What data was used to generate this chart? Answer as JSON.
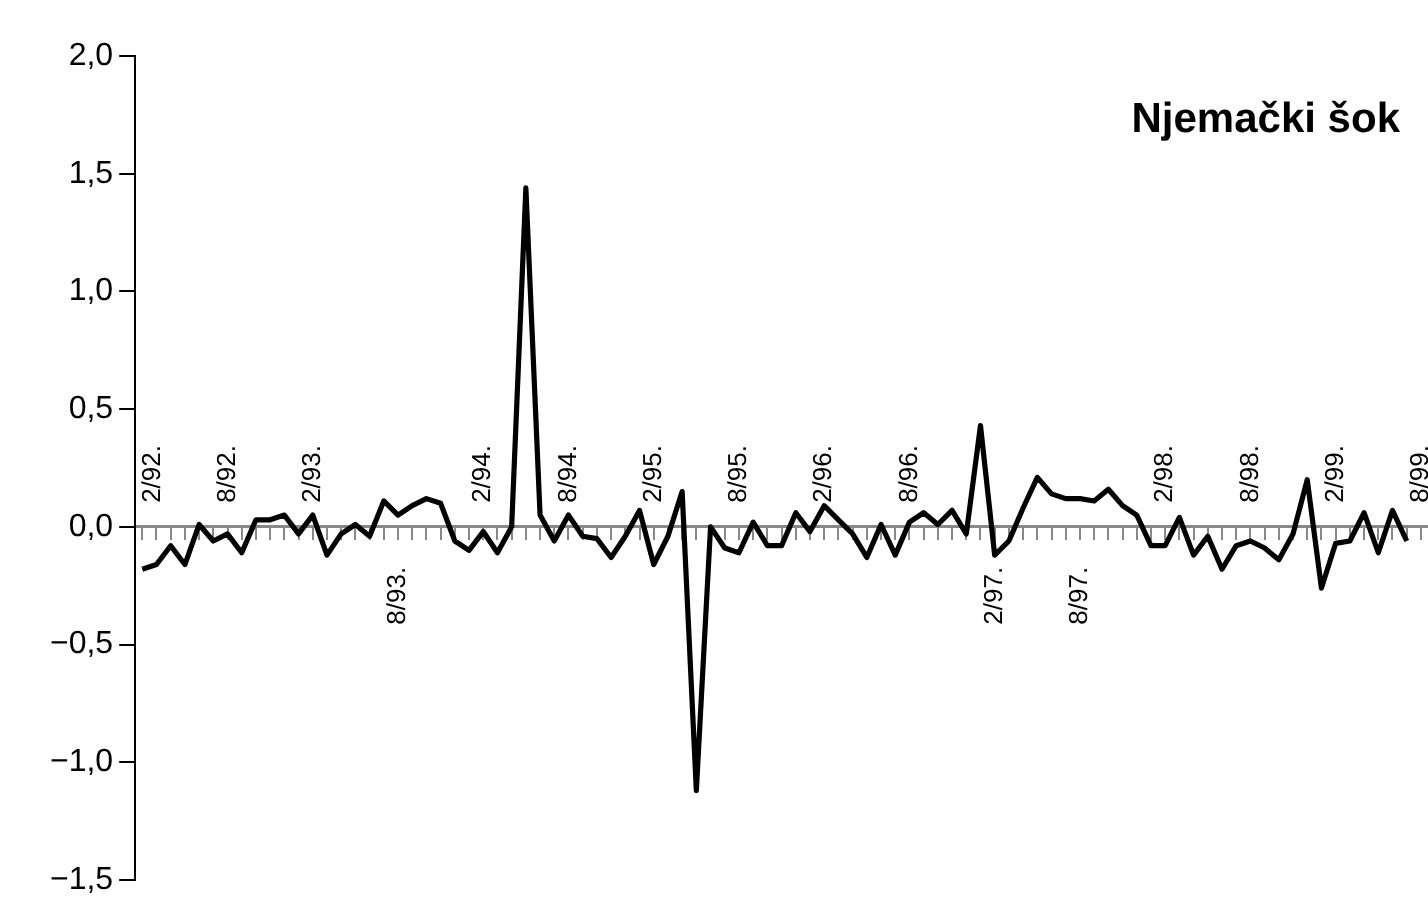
{
  "chart_data": {
    "type": "line",
    "title": "Njemački šok",
    "categories": [
      "2/92.",
      null,
      null,
      null,
      null,
      null,
      "8/92.",
      null,
      null,
      null,
      null,
      null,
      "2/93.",
      null,
      null,
      null,
      null,
      null,
      "8/93.",
      null,
      null,
      null,
      null,
      null,
      "2/94.",
      null,
      null,
      null,
      null,
      null,
      "8/94.",
      null,
      null,
      null,
      null,
      null,
      "2/95.",
      null,
      null,
      null,
      null,
      null,
      "8/95.",
      null,
      null,
      null,
      null,
      null,
      "2/96.",
      null,
      null,
      null,
      null,
      null,
      "8/96.",
      null,
      null,
      null,
      null,
      null,
      "2/97.",
      null,
      null,
      null,
      null,
      null,
      "8/97.",
      null,
      null,
      null,
      null,
      null,
      "2/98.",
      null,
      null,
      null,
      null,
      null,
      "8/98.",
      null,
      null,
      null,
      null,
      null,
      "2/99.",
      null,
      null,
      null,
      null,
      null,
      "8/99."
    ],
    "series": [
      {
        "color": "#000000",
        "values": [
          -0.18,
          -0.16,
          -0.08,
          -0.16,
          0.01,
          -0.06,
          -0.03,
          -0.11,
          0.03,
          0.03,
          0.05,
          -0.03,
          0.05,
          -0.12,
          -0.03,
          0.01,
          -0.04,
          0.11,
          0.05,
          0.09,
          0.12,
          0.1,
          -0.06,
          -0.1,
          -0.02,
          -0.11,
          0.0,
          1.44,
          0.05,
          -0.06,
          0.05,
          -0.04,
          -0.05,
          -0.13,
          -0.04,
          0.07,
          -0.16,
          -0.04,
          0.15,
          -1.12,
          0.0,
          -0.09,
          -0.11,
          0.02,
          -0.08,
          -0.08,
          0.06,
          -0.02,
          0.09,
          0.03,
          -0.03,
          -0.13,
          0.01,
          -0.12,
          0.02,
          0.06,
          0.01,
          0.07,
          -0.03,
          0.43,
          -0.12,
          -0.06,
          0.08,
          0.21,
          0.14,
          0.12,
          0.12,
          0.11,
          0.16,
          0.09,
          0.05,
          -0.08,
          -0.08,
          0.04,
          -0.12,
          -0.04,
          -0.18,
          -0.08,
          -0.06,
          -0.09,
          -0.14,
          -0.03,
          0.2,
          -0.26,
          -0.07,
          -0.06,
          0.06,
          -0.11,
          0.07,
          -0.06,
          null
        ]
      }
    ],
    "ylim": [
      -1.5,
      2.0
    ],
    "yticks": [
      {
        "value": -1.5,
        "label": "−1,5"
      },
      {
        "value": -1.0,
        "label": "−1,0"
      },
      {
        "value": -0.5,
        "label": "−0,5"
      },
      {
        "value": 0.0,
        "label": "0,0"
      },
      {
        "value": 0.5,
        "label": "0,5"
      },
      {
        "value": 1.0,
        "label": "1,0"
      },
      {
        "value": 1.5,
        "label": "1,5"
      },
      {
        "value": 2.0,
        "label": "2,0"
      }
    ],
    "grid": false,
    "legend": false,
    "marker": "none",
    "line_style": "solid"
  }
}
